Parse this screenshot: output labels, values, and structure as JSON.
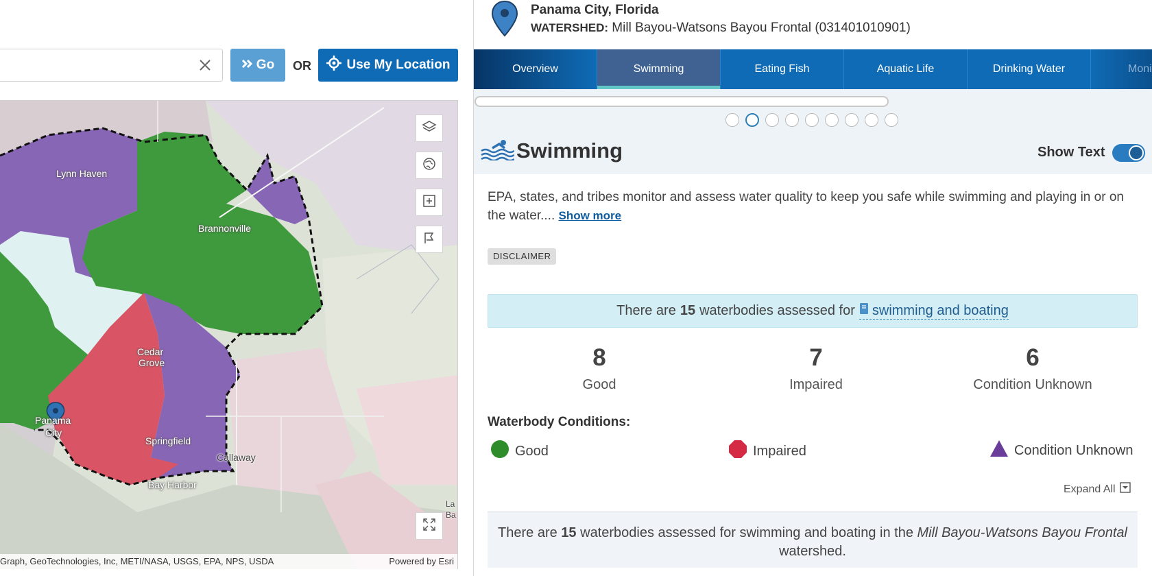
{
  "search": {
    "value": "",
    "go_label": "Go",
    "or_label": "OR",
    "use_location_label": "Use My Location"
  },
  "map": {
    "labels": {
      "lynn_haven": "Lynn Haven",
      "brannonville": "Brannonville",
      "cedar_grove_1": "Cedar",
      "cedar_grove_2": "Grove",
      "panama_city_1": "Panama",
      "panama_city_2": "City",
      "springfield": "Springfield",
      "callaway": "Callaway",
      "bay_harbor": "Bay Harbor",
      "edge_label_1": "La",
      "edge_label_2": "Ba"
    },
    "attribution": "Graph, GeoTechnologies, Inc, METI/NASA, USGS, EPA, NPS, USDA",
    "powered_by": "Powered by Esri",
    "colors": {
      "good": "#3f9a3d",
      "impaired": "#d95565",
      "unknown": "#8866b6"
    }
  },
  "location": {
    "title": "Panama City, Florida",
    "watershed_label": "WATERSHED:",
    "watershed_value": "Mill Bayou-Watsons Bayou Frontal (031401010901)"
  },
  "tabs": [
    {
      "label": "Overview"
    },
    {
      "label": "Swimming"
    },
    {
      "label": "Eating Fish"
    },
    {
      "label": "Aquatic Life"
    },
    {
      "label": "Drinking Water"
    },
    {
      "label": "Monit"
    }
  ],
  "section": {
    "title": "Swimming",
    "show_text_label": "Show Text",
    "intro": "EPA, states, and tribes monitor and assess water quality to keep you safe while swimming and playing in or on the water.... ",
    "show_more": "Show more",
    "disclaimer": "DISCLAIMER",
    "assessed_prefix": "There are",
    "assessed_count": "15",
    "assessed_middle": "waterbodies assessed for",
    "assessed_link": "swimming and boating"
  },
  "stats": [
    {
      "value": "8",
      "label": "Good"
    },
    {
      "value": "7",
      "label": "Impaired"
    },
    {
      "value": "6",
      "label": "Condition Unknown"
    }
  ],
  "conditions": {
    "title": "Waterbody Conditions:",
    "good": "Good",
    "impaired": "Impaired",
    "unknown": "Condition Unknown"
  },
  "expand_all": "Expand All",
  "bottom": {
    "prefix": "There are",
    "count": "15",
    "middle": "waterbodies assessed for swimming and boating in the",
    "watershed": "Mill Bayou-Watsons Bayou Frontal",
    "suffix": "watershed."
  }
}
